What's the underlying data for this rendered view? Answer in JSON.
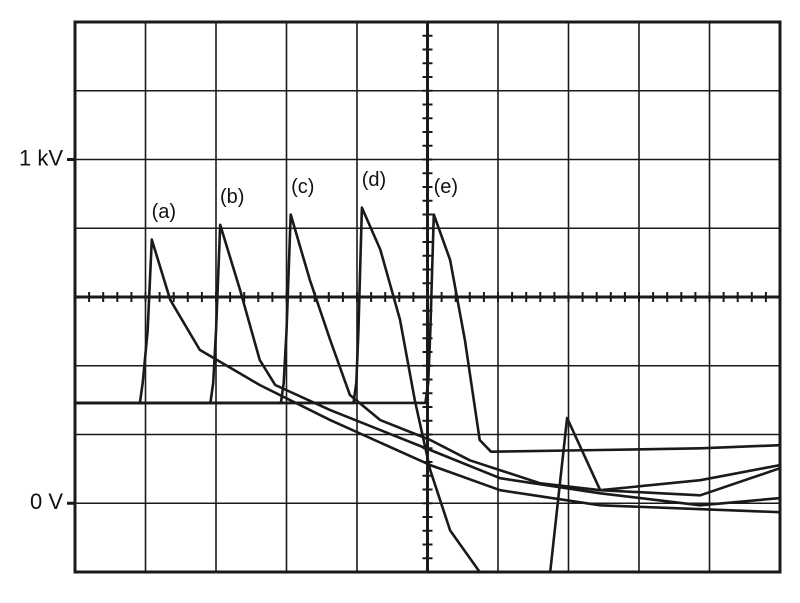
{
  "chart_data": {
    "type": "line",
    "ylim": [
      -200,
      1400
    ],
    "yticks": [
      {
        "value": 0,
        "label": "0 V"
      },
      {
        "value": 1000,
        "label": "1 kV"
      }
    ],
    "xlim": [
      0,
      10
    ],
    "grid": true,
    "color": "#1a1a1a",
    "series": [
      {
        "name": "(a)",
        "x": [
          0,
          0.92,
          0.96,
          1.03,
          1.09,
          1.35,
          1.77,
          2.62,
          3.62,
          5.04,
          6.03,
          7.45,
          10
        ],
        "values": [
          292,
          292,
          350,
          500,
          767,
          592,
          446,
          344,
          242,
          111,
          38,
          -6,
          -26
        ]
      },
      {
        "name": "(b)",
        "x": [
          0,
          1.92,
          1.96,
          2.0,
          2.06,
          2.34,
          2.62,
          2.84,
          3.62,
          5.04,
          6.03,
          7.45,
          8.87,
          10
        ],
        "values": [
          292,
          292,
          350,
          500,
          810,
          621,
          417,
          344,
          271,
          155,
          73,
          29,
          -6,
          15
        ]
      },
      {
        "name": "(c)",
        "x": [
          0,
          2.92,
          2.96,
          3.0,
          3.06,
          3.33,
          3.62,
          3.9,
          4.33,
          5.04,
          5.6,
          6.6,
          7.45,
          8.87,
          10
        ],
        "values": [
          292,
          292,
          350,
          500,
          840,
          650,
          475,
          315,
          242,
          184,
          125,
          58,
          38,
          23,
          102
        ]
      },
      {
        "name": "(d)",
        "x": [
          0,
          3.95,
          3.99,
          4.02,
          4.07,
          4.33,
          4.61,
          4.82,
          5.04,
          5.32,
          5.74,
          6.2,
          6.74,
          6.98,
          7.45,
          8.87,
          10
        ],
        "values": [
          292,
          292,
          350,
          500,
          860,
          738,
          534,
          300,
          96,
          -79,
          -200,
          null,
          -200,
          248,
          38,
          67,
          111
        ]
      },
      {
        "name": "(e)",
        "x": [
          0,
          4.97,
          5.01,
          5.04,
          5.09,
          5.32,
          5.53,
          5.74,
          5.9,
          7.45,
          8.87,
          10
        ],
        "values": [
          292,
          292,
          350,
          500,
          840,
          708,
          475,
          184,
          150,
          155,
          160,
          169
        ]
      }
    ]
  }
}
